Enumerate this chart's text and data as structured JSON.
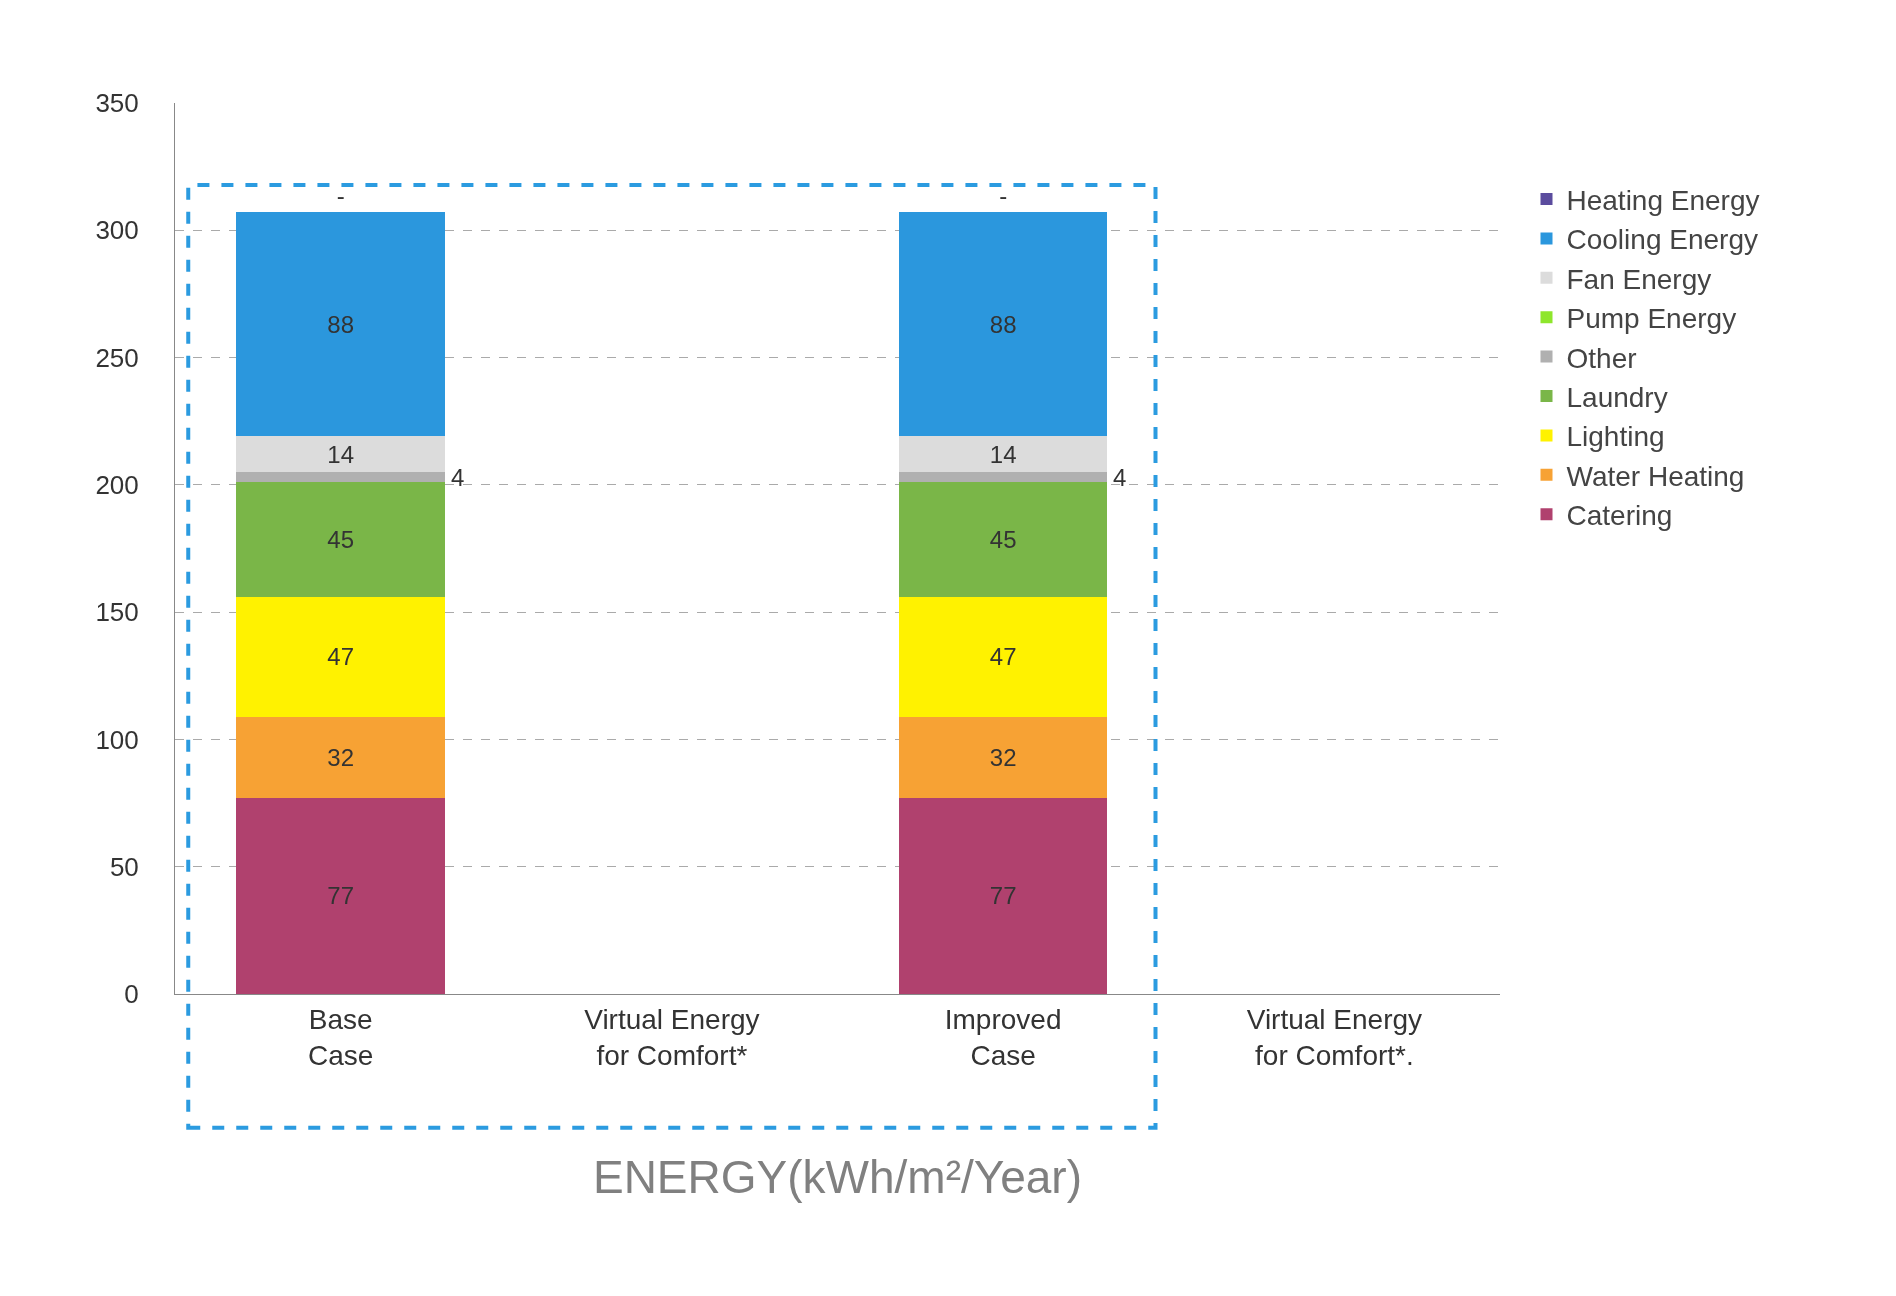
{
  "chart_data": {
    "type": "bar",
    "stacked": true,
    "xlabel": "ENERGY(kWh/m²/Year)",
    "categories": [
      "Base\nCase",
      "Virtual Energy\nfor Comfort*",
      "Improved\nCase",
      "Virtual Energy\nfor Comfort*."
    ],
    "ylim": [
      0,
      350
    ],
    "yticks": [
      0,
      50,
      100,
      150,
      200,
      250,
      300,
      350
    ],
    "grid": "y",
    "legend": "right",
    "series": [
      {
        "name": "Catering",
        "color": "#b0416e",
        "values": [
          77,
          null,
          77,
          null
        ],
        "value_labels": [
          "77",
          null,
          "77",
          null
        ]
      },
      {
        "name": "Water Heating",
        "color": "#f7a234",
        "values": [
          32,
          null,
          32,
          null
        ],
        "value_labels": [
          "32",
          null,
          "32",
          null
        ]
      },
      {
        "name": "Lighting",
        "color": "#fff200",
        "values": [
          47,
          null,
          47,
          null
        ],
        "value_labels": [
          "47",
          null,
          "47",
          null
        ]
      },
      {
        "name": "Laundry",
        "color": "#7ab648",
        "values": [
          45,
          null,
          45,
          null
        ],
        "value_labels": [
          "45",
          null,
          "45",
          null
        ]
      },
      {
        "name": "Other",
        "color": "#b0b0b0",
        "values": [
          4,
          null,
          4,
          null
        ],
        "value_labels": [
          "4",
          null,
          "4",
          null
        ]
      },
      {
        "name": "Pump Energy",
        "color": "#8ee62c",
        "values": [
          null,
          null,
          null,
          null
        ]
      },
      {
        "name": "Fan Energy",
        "color": "#dcdcdc",
        "values": [
          14,
          null,
          14,
          null
        ],
        "value_labels": [
          "14",
          null,
          "14",
          null
        ]
      },
      {
        "name": "Cooling Energy",
        "color": "#2b97dd",
        "values": [
          88,
          null,
          88,
          null
        ],
        "value_labels": [
          "88",
          null,
          "88",
          null
        ]
      },
      {
        "name": "Heating Energy",
        "color": "#5b4c9e",
        "values": [
          0,
          null,
          0,
          null
        ],
        "value_labels": [
          "-",
          null,
          "-",
          null
        ]
      }
    ]
  }
}
